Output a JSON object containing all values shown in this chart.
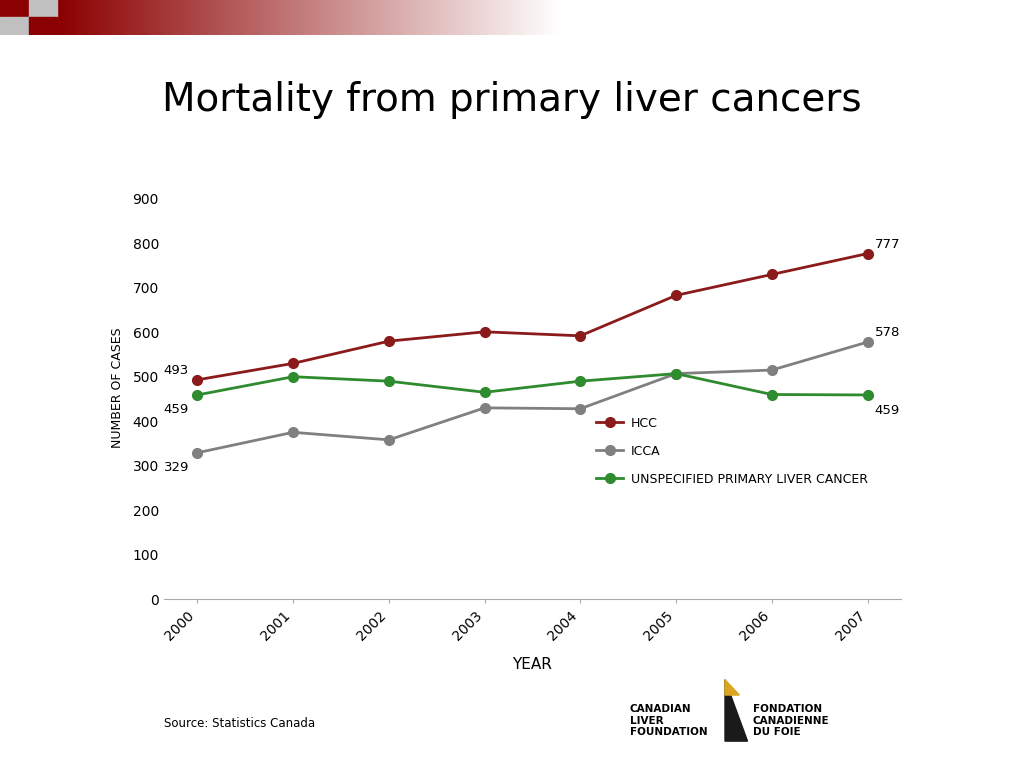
{
  "title": "Mortality from primary liver cancers",
  "years": [
    2000,
    2001,
    2002,
    2003,
    2004,
    2005,
    2006,
    2007
  ],
  "hcc": [
    493,
    530,
    580,
    601,
    592,
    683,
    730,
    777
  ],
  "icca": [
    329,
    375,
    358,
    430,
    428,
    507,
    515,
    578
  ],
  "unspecified": [
    459,
    500,
    490,
    465,
    490,
    507,
    460,
    459
  ],
  "hcc_color": "#8B1A1A",
  "icca_color": "#808080",
  "unspecified_color": "#2E8B2E",
  "ylabel": "NUMBER OF CASES",
  "xlabel": "YEAR",
  "ylim": [
    0,
    950
  ],
  "yticks": [
    0,
    100,
    200,
    300,
    400,
    500,
    600,
    700,
    800,
    900
  ],
  "source_text": "Source: Statistics Canada",
  "legend_hcc": "HCC",
  "legend_icca": "ICCA",
  "legend_unspecified": "UNSPECIFIED PRIMARY LIVER CANCER",
  "start_annotations": {
    "hcc": 493,
    "icca": 329,
    "unspecified": 459
  },
  "end_annotations": {
    "hcc": 777,
    "icca": 578,
    "unspecified": 459
  }
}
